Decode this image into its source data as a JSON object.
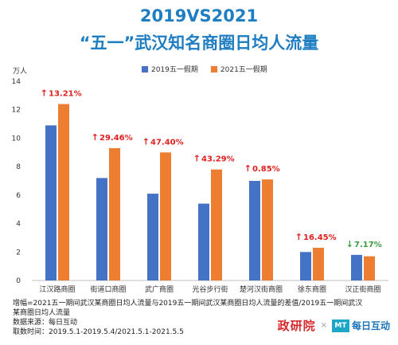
{
  "header": {
    "title_line1": "2019VS2021",
    "title_line2": "“五一”武汉知名商圈日均人流量"
  },
  "unit": "万人",
  "colors": {
    "series_2019": "#4472c4",
    "series_2021": "#ed7d31",
    "up": "#e0201f",
    "down": "#3a9b3a",
    "title": "#1f7dc2"
  },
  "chart_data": {
    "type": "bar",
    "categories": [
      "江汉路商圈",
      "街道口商圈",
      "武广商圈",
      "光谷步行街",
      "楚河汉街商圈",
      "徐东商圈",
      "汉正街商圈"
    ],
    "series": [
      {
        "name": "2019五一假期",
        "values": [
          10.9,
          7.2,
          6.1,
          5.4,
          7.0,
          2.0,
          1.8
        ]
      },
      {
        "name": "2021五一假期",
        "values": [
          12.4,
          9.3,
          9.0,
          7.8,
          7.1,
          2.3,
          1.7
        ]
      }
    ],
    "annotations": [
      {
        "text": "13.21%",
        "direction": "up"
      },
      {
        "text": "29.46%",
        "direction": "up"
      },
      {
        "text": "47.40%",
        "direction": "up"
      },
      {
        "text": "43.29%",
        "direction": "up"
      },
      {
        "text": "0.85%",
        "direction": "up"
      },
      {
        "text": "16.45%",
        "direction": "up"
      },
      {
        "text": "7.17%",
        "direction": "down"
      }
    ],
    "yticks": [
      "0",
      "2",
      "4",
      "6",
      "8",
      "10",
      "12",
      "14"
    ],
    "ylim": [
      0,
      14
    ],
    "legend_position": "top"
  },
  "footnote": {
    "line1": "增幅=2021五一期间武汉某商圈日均人流量与2019五一期间武汉某商圈日均人流量的差值/2019五一期间武汉",
    "line2": "某商圈日均人流量",
    "line3": "数据来源：每日互动",
    "line4": "取数时间：2019.5.1-2019.5.4/2021.5.1-2021.5.5"
  },
  "logos": {
    "yanjiuyuan": "政研院",
    "separator": "×",
    "mt": "MT",
    "meiri": "每日互动"
  }
}
